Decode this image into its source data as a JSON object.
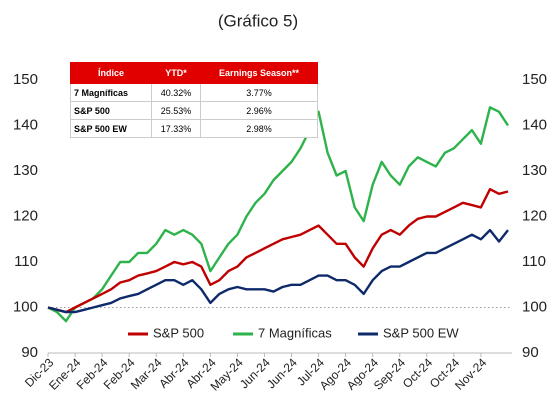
{
  "chart_data": {
    "type": "line",
    "title": "(Gráfico 5)",
    "categories": [
      "Dic-23",
      null,
      null,
      "Ene-24",
      null,
      null,
      "Feb-24",
      null,
      null,
      "Feb-24",
      null,
      null,
      "Mar-24",
      null,
      null,
      "Abr-24",
      null,
      null,
      "Abr-24",
      null,
      null,
      "May-24",
      null,
      null,
      "Jun-24",
      null,
      null,
      "Jun-24",
      null,
      null,
      "Jul-24",
      null,
      null,
      "Ago-24",
      null,
      null,
      "Ago-24",
      null,
      null,
      "Sep-24",
      null,
      null,
      "Oct-24",
      null,
      null,
      "Oct-24",
      null,
      null,
      "Nov-24",
      null,
      null,
      null
    ],
    "series": [
      {
        "name": "S&P 500",
        "color": "#c00000",
        "values": [
          100,
          99.5,
          99,
          100,
          101,
          102,
          103,
          104,
          105.5,
          106,
          107,
          107.5,
          108,
          109,
          110,
          109.5,
          110,
          109,
          105,
          106,
          108,
          109,
          111,
          112,
          113,
          114,
          115,
          115.5,
          116,
          117,
          118,
          116,
          114,
          114,
          111,
          109,
          113,
          116,
          117,
          116,
          118,
          119.5,
          120,
          120,
          121,
          122,
          123,
          122.5,
          122,
          126,
          125,
          125.5
        ]
      },
      {
        "name": "7 Magníficas",
        "color": "#2db34a",
        "values": [
          100,
          99,
          97,
          100,
          101,
          102,
          104,
          107,
          110,
          110,
          112,
          112,
          114,
          117,
          116,
          117,
          116,
          114,
          108,
          111,
          114,
          116,
          120,
          123,
          125,
          128,
          130,
          132,
          135,
          139,
          143,
          134,
          129,
          130,
          122,
          119,
          127,
          132,
          129,
          127,
          131,
          133,
          132,
          131,
          134,
          135,
          137,
          139,
          136,
          144,
          143,
          140
        ]
      },
      {
        "name": "S&P 500 EW",
        "color": "#0f2a6b",
        "values": [
          100,
          99.5,
          99,
          99,
          99.5,
          100,
          100.5,
          101,
          102,
          102.5,
          103,
          104,
          105,
          106,
          106,
          105,
          106,
          104,
          101,
          103,
          104,
          104.5,
          104,
          104,
          104,
          103.5,
          104.5,
          105,
          105,
          106,
          107,
          107,
          106,
          106,
          105,
          103,
          106,
          108,
          109,
          109,
          110,
          111,
          112,
          112,
          113,
          114,
          115,
          116,
          115,
          117,
          114.5,
          117
        ]
      }
    ],
    "ylim": [
      90,
      150
    ],
    "yticks": [
      90,
      100,
      110,
      120,
      130,
      140,
      150
    ],
    "y2lim": [
      90,
      150
    ],
    "y2ticks": [
      90,
      100,
      110,
      120,
      130,
      140,
      150
    ],
    "reference_line": 100,
    "legend": "bottom"
  },
  "table": {
    "header": [
      "Índice",
      "YTD*",
      "Earnings Season**"
    ],
    "rows": [
      [
        "7 Magníficas",
        "40.32%",
        "3.77%"
      ],
      [
        "S&P 500",
        "25.53%",
        "2.96%"
      ],
      [
        "S&P 500 EW",
        "17.33%",
        "2.98%"
      ]
    ]
  }
}
